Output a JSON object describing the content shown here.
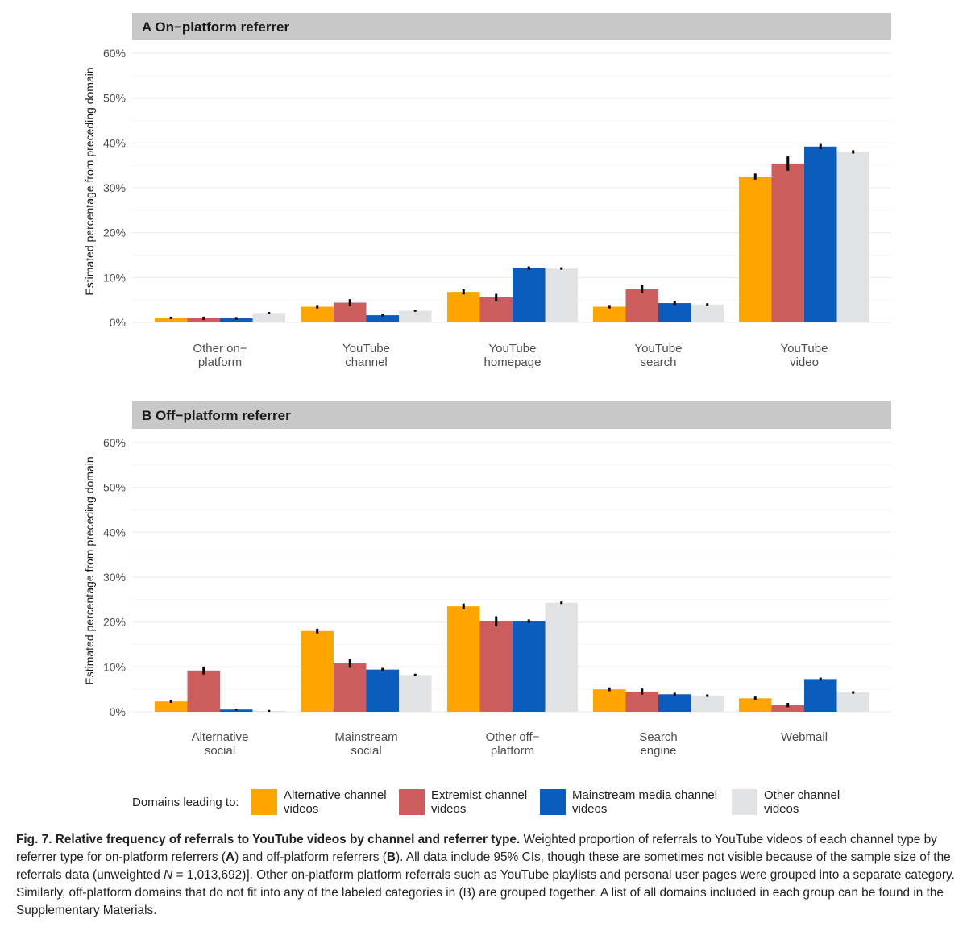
{
  "chart_data": [
    {
      "type": "bar",
      "panel_letter": "A",
      "title": "On−platform referrer",
      "ylabel": "Estimated percentage from preceding domain",
      "xlabel": "",
      "ylim": [
        0,
        60
      ],
      "yticks": [
        "0%",
        "10%",
        "20%",
        "30%",
        "40%",
        "50%",
        "60%"
      ],
      "ytick_values": [
        0,
        10,
        20,
        30,
        40,
        50,
        60
      ],
      "categories": [
        [
          "Other on−",
          "platform"
        ],
        [
          "YouTube",
          "channel"
        ],
        [
          "YouTube",
          "homepage"
        ],
        [
          "YouTube",
          "search"
        ],
        [
          "YouTube",
          "video"
        ]
      ],
      "grid": true,
      "series": [
        {
          "name": "Alternative channel videos",
          "values": [
            1.0,
            3.5,
            6.8,
            3.5,
            32.5
          ],
          "ci": [
            0.1,
            0.2,
            0.4,
            0.2,
            0.5
          ]
        },
        {
          "name": "Extremist channel videos",
          "values": [
            0.9,
            4.4,
            5.6,
            7.4,
            35.4
          ],
          "ci": [
            0.2,
            0.6,
            0.6,
            0.7,
            1.4
          ]
        },
        {
          "name": "Mainstream media channel videos",
          "values": [
            0.9,
            1.6,
            12.1,
            4.3,
            39.2
          ],
          "ci": [
            0.1,
            0.1,
            0.2,
            0.2,
            0.4
          ]
        },
        {
          "name": "Other channel videos",
          "values": [
            2.1,
            2.6,
            12.0,
            4.0,
            38.0
          ],
          "ci": [
            0.05,
            0.05,
            0.1,
            0.1,
            0.2
          ]
        }
      ]
    },
    {
      "type": "bar",
      "panel_letter": "B",
      "title": "Off−platform referrer",
      "ylabel": "Estimated percentage from preceding domain",
      "xlabel": "",
      "ylim": [
        0,
        60
      ],
      "yticks": [
        "0%",
        "10%",
        "20%",
        "30%",
        "40%",
        "50%",
        "60%"
      ],
      "ytick_values": [
        0,
        10,
        20,
        30,
        40,
        50,
        60
      ],
      "categories": [
        [
          "Alternative",
          "social"
        ],
        [
          "Mainstream",
          "social"
        ],
        [
          "Other off−",
          "platform"
        ],
        [
          "Search",
          "engine"
        ],
        [
          "Webmail"
        ]
      ],
      "grid": true,
      "series": [
        {
          "name": "Alternative channel videos",
          "values": [
            2.3,
            18.0,
            23.5,
            5.0,
            3.0
          ],
          "ci": [
            0.15,
            0.35,
            0.45,
            0.25,
            0.2
          ]
        },
        {
          "name": "Extremist channel videos",
          "values": [
            9.2,
            10.8,
            20.2,
            4.5,
            1.5
          ],
          "ci": [
            0.7,
            0.8,
            0.9,
            0.5,
            0.3
          ]
        },
        {
          "name": "Mainstream media channel videos",
          "values": [
            0.5,
            9.4,
            20.2,
            3.9,
            7.3
          ],
          "ci": [
            0.05,
            0.2,
            0.2,
            0.15,
            0.15
          ]
        },
        {
          "name": "Other channel videos",
          "values": [
            0.2,
            8.2,
            24.3,
            3.6,
            4.3
          ],
          "ci": [
            0.03,
            0.1,
            0.1,
            0.1,
            0.1
          ]
        }
      ]
    }
  ],
  "colors": {
    "series": [
      "#ffa500",
      "#cd5c5c",
      "#0a5cbd",
      "#e2e3e4"
    ],
    "panel_strip": "#c8c8c8",
    "grid": "#ebebeb",
    "errorbar": "#000000"
  },
  "legend": {
    "title": "Domains leading to:",
    "items": [
      {
        "line1": "Alternative channel",
        "line2": "videos"
      },
      {
        "line1": "Extremist channel",
        "line2": "videos"
      },
      {
        "line1": "Mainstream media channel",
        "line2": "videos"
      },
      {
        "line1": "Other channel",
        "line2": "videos"
      }
    ]
  },
  "caption": {
    "title": "Fig. 7. Relative frequency of referrals to YouTube videos by channel and referrer type.",
    "p1": " Weighted proportion of referrals to YouTube videos of each channel type by referrer type for on-platform referrers (",
    "a_letter": "A",
    "p2": ") and off-platform referrers (",
    "b_letter": "B",
    "p3": "). All data include 95% CIs, though these are sometimes not visible because of the sample size of the referrals data (unweighted ",
    "n_symbol": "N",
    "p4": " = 1,013,692)]. Other on-platform platform referrals such as YouTube playlists and personal user pages were grouped into a separate category. Similarly, off-platform domains that do not fit into any of the labeled categories in (B) are grouped together. A list of all domains included in each group can be found in the Supplementary Materials."
  }
}
